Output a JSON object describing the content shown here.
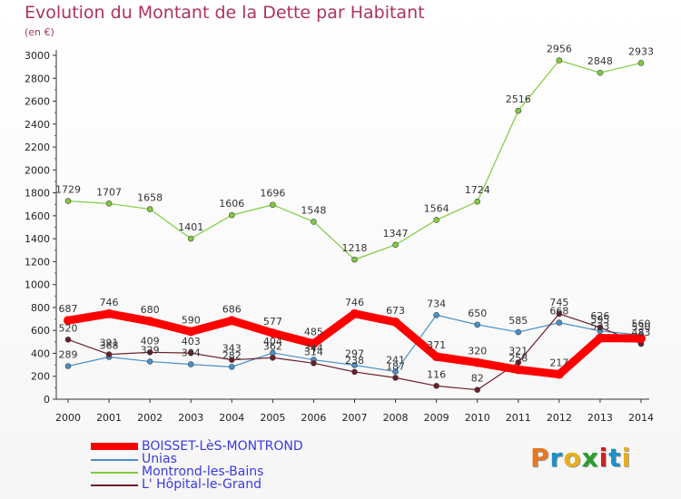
{
  "title": "Evolution du Montant de la Dette par Habitant",
  "subtitle": "(en €)",
  "brand": {
    "text": "Proxiti",
    "letters": [
      "P",
      "r",
      "o",
      "x",
      "i",
      "t",
      "i"
    ],
    "colors": [
      "#e87722",
      "#1e90c8",
      "#e8b020",
      "#2a9d2a",
      "#d02020",
      "#1e90c8",
      "#e8b020"
    ]
  },
  "chart_data": {
    "type": "line",
    "categories": [
      "2000",
      "2001",
      "2002",
      "2003",
      "2004",
      "2005",
      "2006",
      "2007",
      "2008",
      "2009",
      "2010",
      "2011",
      "2012",
      "2013",
      "2014"
    ],
    "ylim": [
      0,
      3000
    ],
    "yticks": [
      0,
      200,
      400,
      600,
      800,
      1000,
      1200,
      1400,
      1600,
      1800,
      2000,
      2200,
      2400,
      2600,
      2800,
      3000
    ],
    "grid": false,
    "legend_position": "bottom-left",
    "series": [
      {
        "name": "BOISSET-LèS-MONTROND",
        "color": "#ff0000",
        "values": [
          687,
          746,
          680,
          590,
          686,
          577,
          485,
          746,
          673,
          371,
          320,
          258,
          217,
          533,
          530
        ],
        "labels": [
          "687",
          "746",
          "680",
          "590",
          "686",
          "577",
          "485",
          "746",
          "673",
          "371",
          "320",
          "258",
          "217",
          "533",
          "530"
        ]
      },
      {
        "name": "Unias",
        "color": "#4a90c8",
        "values": [
          289,
          368,
          329,
          304,
          282,
          404,
          344,
          297,
          241,
          734,
          650,
          585,
          668,
          595,
          560
        ],
        "labels": [
          "289",
          "368",
          "329",
          "304",
          "282",
          "404",
          "344",
          "297",
          "241",
          "734",
          "650",
          "585",
          "668",
          "595",
          "560"
        ]
      },
      {
        "name": "Montrond-les-Bains",
        "color": "#7fcc3e",
        "values": [
          1729,
          1707,
          1658,
          1401,
          1606,
          1696,
          1548,
          1218,
          1347,
          1564,
          1724,
          2516,
          2956,
          2848,
          2933
        ],
        "labels": [
          "1729",
          "1707",
          "1658",
          "1401",
          "1606",
          "1696",
          "1548",
          "1218",
          "1347",
          "1564",
          "1724",
          "2516",
          "2956",
          "2848",
          "2933"
        ]
      },
      {
        "name": "L' Hôpital-le-Grand",
        "color": "#6b1e2a",
        "values": [
          520,
          391,
          409,
          403,
          343,
          362,
          314,
          238,
          187,
          116,
          82,
          321,
          745,
          626,
          483
        ],
        "labels": [
          "520",
          "391",
          "409",
          "403",
          "343",
          "362",
          "314",
          "238",
          "187",
          "116",
          "82",
          "321",
          "745",
          "626",
          "483"
        ]
      }
    ]
  }
}
